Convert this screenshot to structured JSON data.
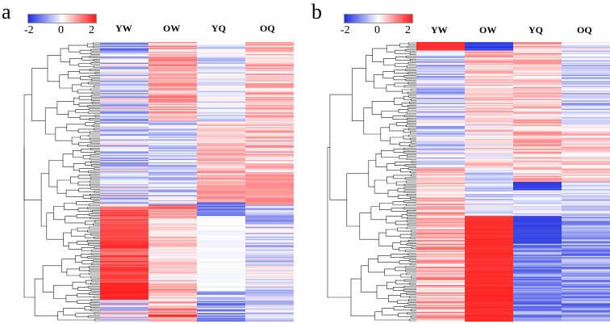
{
  "panels": [
    {
      "letter": "a",
      "columns": [
        "YW",
        "OW",
        "YQ",
        "OQ"
      ],
      "legend": {
        "min": "-2",
        "mid": "0",
        "max": "2"
      }
    },
    {
      "letter": "b",
      "columns": [
        "YW",
        "OW",
        "YQ",
        "OQ"
      ],
      "legend": {
        "min": "-2",
        "mid": "0",
        "max": "2"
      }
    }
  ],
  "colors": {
    "low": "#1f2fe0",
    "mid": "#ffffff",
    "high": "#ff1a1a"
  }
}
